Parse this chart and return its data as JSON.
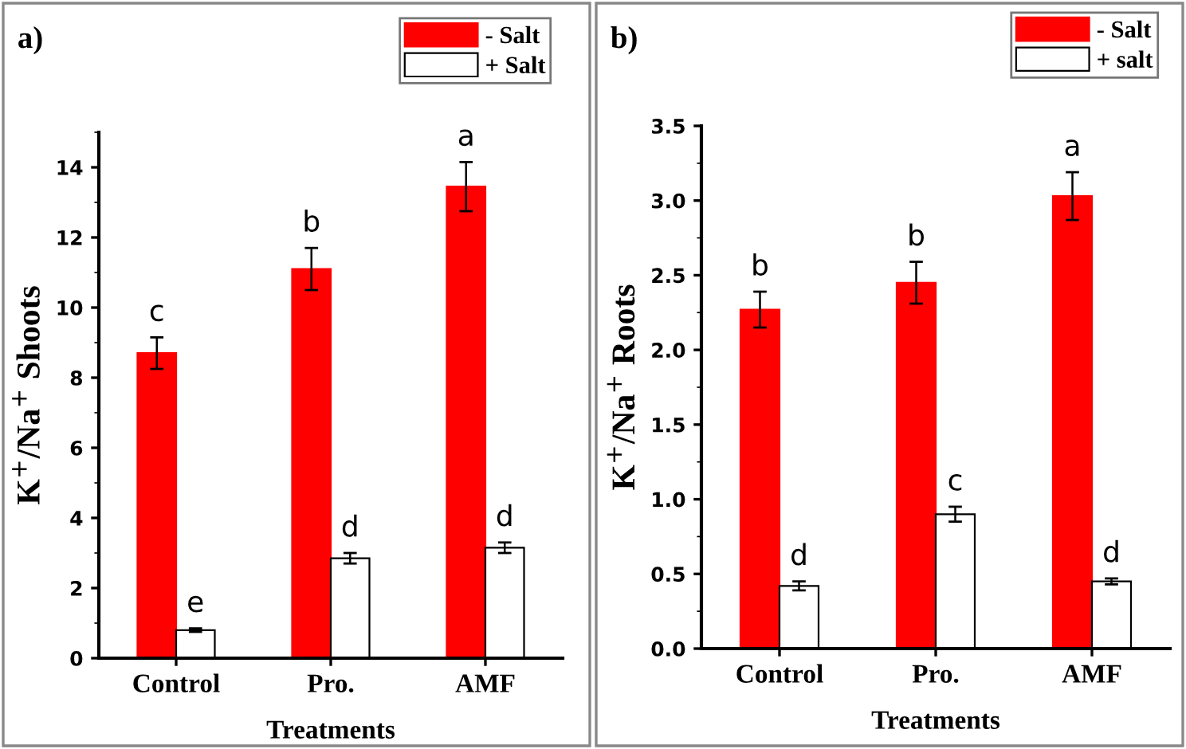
{
  "chart_data": [
    {
      "type": "bar",
      "title": "a)",
      "xlabel": "Treatments",
      "ylabel": "K$^{+}$/Na$^{+}$ Shoots",
      "categories": [
        "Control",
        "Pro.",
        "AMF"
      ],
      "series": [
        {
          "name": "- Salt",
          "color": "#ff0000",
          "values": [
            8.7,
            11.1,
            13.45
          ],
          "errors": [
            0.45,
            0.6,
            0.7
          ]
        },
        {
          "name": "+ Salt",
          "color": "#ffffff",
          "values": [
            0.8,
            2.85,
            3.15
          ],
          "errors": [
            0.05,
            0.15,
            0.15
          ]
        }
      ],
      "ylim": [
        0,
        15
      ],
      "yticks": [
        0,
        2,
        4,
        6,
        8,
        10,
        12,
        14
      ],
      "grid": false,
      "legend": "top right",
      "annotations": [
        "c",
        "b",
        "a",
        "e",
        "d",
        "d"
      ]
    },
    {
      "type": "bar",
      "title": "b)",
      "xlabel": "Treatments",
      "ylabel": "K$^{+}$/Na$^{+}$ Roots",
      "categories": [
        "Control",
        "Pro.",
        "AMF"
      ],
      "series": [
        {
          "name": "- Salt",
          "color": "#ff0000",
          "values": [
            2.27,
            2.45,
            3.03
          ],
          "errors": [
            0.12,
            0.14,
            0.16
          ]
        },
        {
          "name": "+ salt",
          "color": "#ffffff",
          "values": [
            0.42,
            0.9,
            0.45
          ],
          "errors": [
            0.03,
            0.05,
            0.02
          ]
        }
      ],
      "ylim": [
        0,
        3.5
      ],
      "yticks": [
        {
          "value": 0,
          "label": "0.0"
        },
        0.5,
        {
          "value": 1,
          "label": "1.0"
        },
        1.5,
        {
          "value": 2,
          "label": "2.0"
        },
        2.5,
        {
          "value": 3,
          "label": "3.0"
        },
        3.5
      ],
      "grid": false,
      "legend": "top right",
      "annotations": [
        "b",
        "b",
        "a",
        "d",
        "c",
        "d"
      ]
    }
  ]
}
